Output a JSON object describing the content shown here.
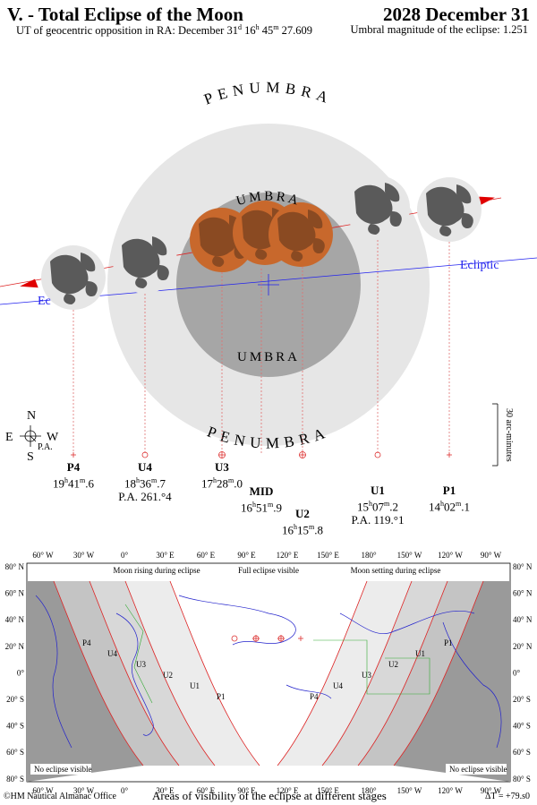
{
  "header": {
    "title": "V. - Total Eclipse of the Moon",
    "date": "2028 December 31",
    "opposition": "UT of geocentric opposition in RA: December 31",
    "opposition_day": "d",
    "opposition_hour": "16",
    "opposition_rest": "45",
    "opposition_sec": "27.609",
    "magnitude_label": "Umbral magnitude of the eclipse: 1.251"
  },
  "diagram": {
    "penumbra_top": "PENUMBRA",
    "penumbra_bottom": "PENUMBRA",
    "umbra_top": "UMBRA",
    "umbra_bottom": "UMBRA",
    "ecliptic_label_right": "Ecliptic",
    "ecliptic_label_left": "Ec",
    "scale_label": "30 arc-minutes",
    "compass": {
      "n": "N",
      "s": "S",
      "e": "E",
      "w": "W",
      "pa": "P.A."
    }
  },
  "events": [
    {
      "id": "P4",
      "h": "19",
      "m": "41",
      "s": "6",
      "pa": ""
    },
    {
      "id": "U4",
      "h": "18",
      "m": "36",
      "s": "7",
      "pa": "P.A. 261.°4"
    },
    {
      "id": "U3",
      "h": "17",
      "m": "28",
      "s": "0",
      "pa": ""
    },
    {
      "id": "MID",
      "h": "16",
      "m": "51",
      "s": "9",
      "pa": ""
    },
    {
      "id": "U2",
      "h": "16",
      "m": "15",
      "s": "8",
      "pa": ""
    },
    {
      "id": "U1",
      "h": "15",
      "m": "07",
      "s": "2",
      "pa": "P.A. 119.°1"
    },
    {
      "id": "P1",
      "h": "14",
      "m": "02",
      "s": "1",
      "pa": ""
    }
  ],
  "map": {
    "top_lon": [
      "60° W",
      "30° W",
      "0°",
      "30° E",
      "60° E",
      "90° E",
      "120° E",
      "150° E",
      "180°",
      "150° W",
      "120° W",
      "90° W"
    ],
    "bottom_lon": [
      "60° W",
      "30° W",
      "0°",
      "30° E",
      "60° E",
      "90° E",
      "120° E",
      "150° E",
      "180°",
      "150° W",
      "120° W",
      "90° W"
    ],
    "lat": [
      "80° N",
      "60° N",
      "40° N",
      "20° N",
      "0°",
      "20° S",
      "40° S",
      "60° S",
      "80° S"
    ],
    "moon_rising": "Moon rising during eclipse",
    "full_visible": "Full eclipse visible",
    "moon_setting": "Moon setting during eclipse",
    "no_eclipse_left": "No eclipse visible",
    "no_eclipse_right": "No eclipse visible",
    "curve_labels_left": [
      "P4",
      "U4",
      "U3",
      "U2",
      "U1",
      "P1"
    ],
    "curve_labels_right": [
      "P4",
      "U4",
      "U3",
      "U2",
      "U1",
      "P1"
    ]
  },
  "footer": {
    "copyright": "©HM Nautical Almanac Office",
    "caption": "Areas of visibility of the eclipse at different stages",
    "delta_t": "ΔT = +79.s0"
  }
}
